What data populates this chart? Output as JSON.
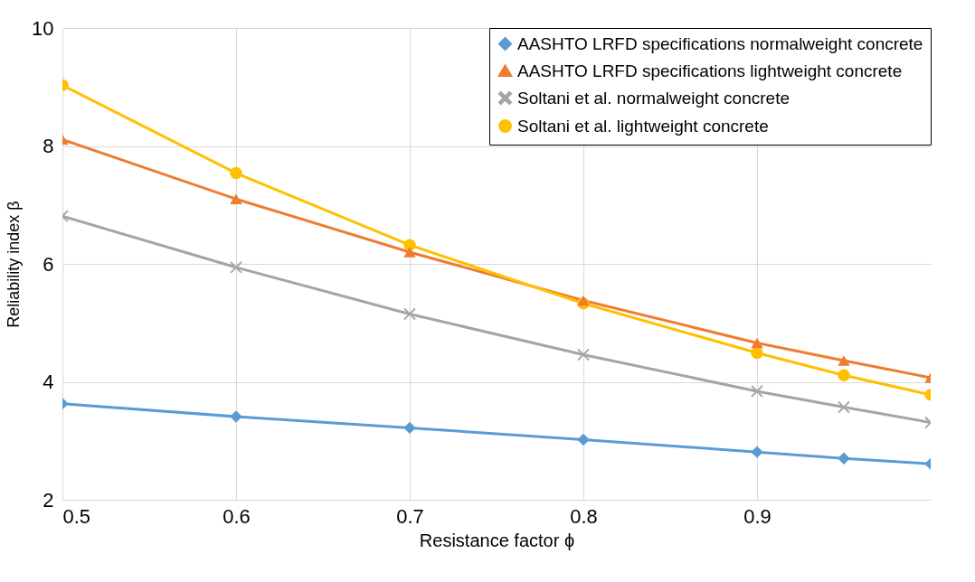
{
  "chart_data": {
    "type": "line",
    "xlabel": "Resistance factor ϕ",
    "ylabel": "Reliability index β",
    "x": [
      0.5,
      0.6,
      0.7,
      0.8,
      0.9,
      0.95,
      1.0
    ],
    "xlim": [
      0.5,
      1.0
    ],
    "xticks": [
      0.5,
      0.6,
      0.7,
      0.8,
      0.9
    ],
    "ylim": [
      2,
      10
    ],
    "yticks": [
      2,
      4,
      6,
      8,
      10
    ],
    "grid": true,
    "legend": "top right",
    "series": [
      {
        "name": "AASHTO LRFD specifications normalweight concrete",
        "color": "#5b9bd5",
        "marker": "diamond",
        "values": [
          3.63,
          3.41,
          3.22,
          3.02,
          2.81,
          2.7,
          2.61
        ]
      },
      {
        "name": "AASHTO LRFD specifications lightweight concrete",
        "color": "#ed7d31",
        "marker": "triangle",
        "values": [
          8.11,
          7.1,
          6.2,
          5.38,
          4.66,
          4.36,
          4.07
        ]
      },
      {
        "name": "Soltani et al. normalweight concrete",
        "color": "#a5a5a5",
        "marker": "cross",
        "values": [
          6.81,
          5.94,
          5.15,
          4.46,
          3.84,
          3.57,
          3.31
        ]
      },
      {
        "name": "Soltani et al. lightweight concrete",
        "color": "#ffc000",
        "marker": "circle",
        "values": [
          9.03,
          7.54,
          6.32,
          5.33,
          4.49,
          4.11,
          3.78
        ]
      }
    ]
  }
}
